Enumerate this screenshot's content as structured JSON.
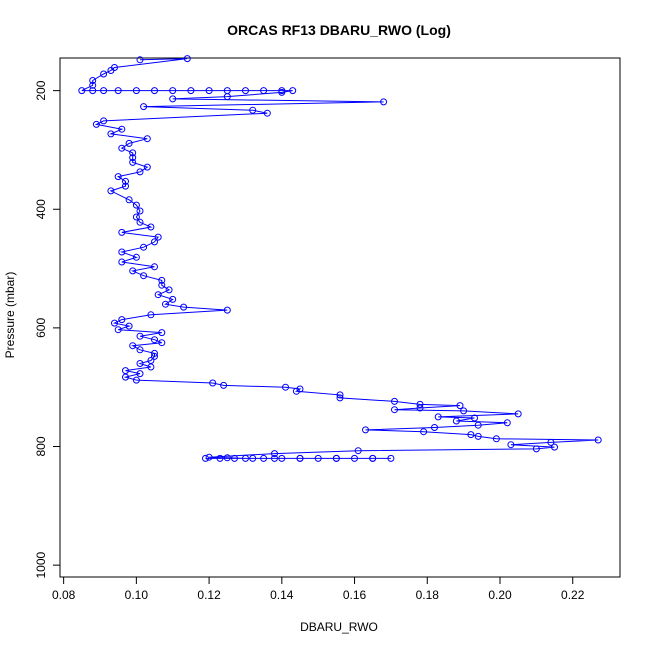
{
  "chart_data": {
    "type": "line",
    "title": "ORCAS RF13 DBARU_RWO (Log)",
    "xlabel": "DBARU_RWO",
    "ylabel": "Pressure (mbar)",
    "xlim": [
      0.079,
      0.233
    ],
    "ylim": [
      1020,
      145
    ],
    "y_reversed": true,
    "grid": false,
    "markers": "open-circle",
    "line_color": "#0000ff",
    "x_ticks": [
      "0.08",
      "0.10",
      "0.12",
      "0.14",
      "0.16",
      "0.18",
      "0.20",
      "0.22"
    ],
    "y_ticks": [
      "200",
      "400",
      "600",
      "800",
      "1000"
    ],
    "series": [
      {
        "points": [
          [
            0.101,
            148
          ],
          [
            0.114,
            146
          ],
          [
            0.094,
            161
          ],
          [
            0.093,
            166
          ],
          [
            0.091,
            172
          ],
          [
            0.088,
            183
          ],
          [
            0.088,
            191
          ],
          [
            0.085,
            200
          ],
          [
            0.088,
            200
          ],
          [
            0.091,
            200
          ],
          [
            0.095,
            200
          ],
          [
            0.1,
            200
          ],
          [
            0.105,
            200
          ],
          [
            0.11,
            200
          ],
          [
            0.115,
            200
          ],
          [
            0.12,
            200
          ],
          [
            0.125,
            200
          ],
          [
            0.13,
            200
          ],
          [
            0.135,
            200
          ],
          [
            0.14,
            200
          ],
          [
            0.143,
            200
          ],
          [
            0.14,
            203
          ],
          [
            0.125,
            210
          ],
          [
            0.11,
            214
          ],
          [
            0.168,
            219
          ],
          [
            0.102,
            227
          ],
          [
            0.132,
            233
          ],
          [
            0.136,
            238
          ],
          [
            0.091,
            251
          ],
          [
            0.089,
            257
          ],
          [
            0.096,
            265
          ],
          [
            0.093,
            273
          ],
          [
            0.103,
            281
          ],
          [
            0.098,
            289
          ],
          [
            0.096,
            297
          ],
          [
            0.099,
            305
          ],
          [
            0.099,
            313
          ],
          [
            0.099,
            321
          ],
          [
            0.103,
            329
          ],
          [
            0.101,
            337
          ],
          [
            0.095,
            345
          ],
          [
            0.097,
            353
          ],
          [
            0.097,
            361
          ],
          [
            0.093,
            369
          ],
          [
            0.098,
            384
          ],
          [
            0.1,
            393
          ],
          [
            0.101,
            403
          ],
          [
            0.1,
            413
          ],
          [
            0.101,
            422
          ],
          [
            0.104,
            430
          ],
          [
            0.096,
            439
          ],
          [
            0.106,
            447
          ],
          [
            0.105,
            455
          ],
          [
            0.102,
            464
          ],
          [
            0.096,
            472
          ],
          [
            0.1,
            481
          ],
          [
            0.096,
            489
          ],
          [
            0.105,
            497
          ],
          [
            0.099,
            504
          ],
          [
            0.102,
            512
          ],
          [
            0.107,
            520
          ],
          [
            0.107,
            528
          ],
          [
            0.109,
            536
          ],
          [
            0.106,
            544
          ],
          [
            0.11,
            552
          ],
          [
            0.108,
            560
          ],
          [
            0.113,
            565
          ],
          [
            0.125,
            570
          ],
          [
            0.104,
            578
          ],
          [
            0.096,
            586
          ],
          [
            0.094,
            592
          ],
          [
            0.098,
            597
          ],
          [
            0.095,
            603
          ],
          [
            0.107,
            608
          ],
          [
            0.101,
            614
          ],
          [
            0.105,
            620
          ],
          [
            0.107,
            625
          ],
          [
            0.099,
            630
          ],
          [
            0.101,
            637
          ],
          [
            0.105,
            643
          ],
          [
            0.105,
            648
          ],
          [
            0.104,
            655
          ],
          [
            0.101,
            660
          ],
          [
            0.104,
            666
          ],
          [
            0.097,
            672
          ],
          [
            0.101,
            677
          ],
          [
            0.097,
            683
          ],
          [
            0.1,
            688
          ],
          [
            0.121,
            693
          ],
          [
            0.124,
            697
          ],
          [
            0.141,
            700
          ],
          [
            0.145,
            703
          ],
          [
            0.144,
            707
          ],
          [
            0.156,
            713
          ],
          [
            0.156,
            718
          ],
          [
            0.171,
            724
          ],
          [
            0.178,
            729
          ],
          [
            0.189,
            731
          ],
          [
            0.178,
            735
          ],
          [
            0.171,
            738
          ],
          [
            0.19,
            740
          ],
          [
            0.205,
            745
          ],
          [
            0.183,
            750
          ],
          [
            0.193,
            752
          ],
          [
            0.188,
            757
          ],
          [
            0.202,
            760
          ],
          [
            0.194,
            764
          ],
          [
            0.182,
            768
          ],
          [
            0.163,
            772
          ],
          [
            0.179,
            775
          ],
          [
            0.192,
            780
          ],
          [
            0.194,
            783
          ],
          [
            0.199,
            787
          ],
          [
            0.227,
            789
          ],
          [
            0.214,
            793
          ],
          [
            0.203,
            797
          ],
          [
            0.215,
            801
          ],
          [
            0.21,
            804
          ],
          [
            0.161,
            807
          ],
          [
            0.138,
            812
          ],
          [
            0.12,
            818
          ],
          [
            0.125,
            819
          ],
          [
            0.13,
            820
          ],
          [
            0.135,
            820
          ],
          [
            0.14,
            820
          ],
          [
            0.145,
            820
          ],
          [
            0.15,
            820
          ],
          [
            0.155,
            820
          ],
          [
            0.16,
            820
          ],
          [
            0.165,
            820
          ],
          [
            0.17,
            820
          ],
          [
            0.165,
            820
          ],
          [
            0.155,
            820
          ],
          [
            0.145,
            820
          ],
          [
            0.138,
            820
          ],
          [
            0.132,
            820
          ],
          [
            0.127,
            820
          ],
          [
            0.123,
            820
          ],
          [
            0.119,
            820
          ]
        ]
      }
    ]
  }
}
